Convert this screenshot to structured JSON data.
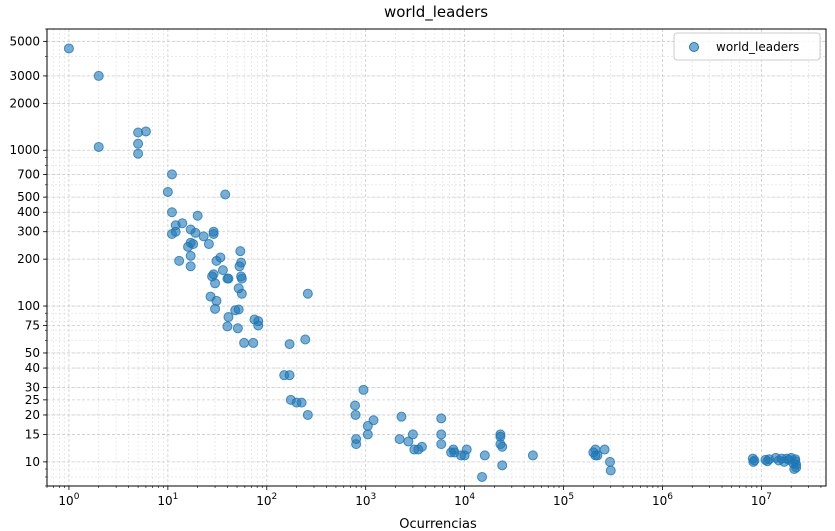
{
  "chart_data": {
    "type": "scatter",
    "title": "world_leaders",
    "xlabel": "Ocurrencias",
    "ylabel": "",
    "xscale": "log",
    "yscale": "log",
    "xlim": [
      0.6,
      45000000
    ],
    "ylim": [
      7,
      6000
    ],
    "grid": true,
    "legend_position": "top-right",
    "x_ticks": [
      {
        "value": 1,
        "base": "10",
        "exp": "0"
      },
      {
        "value": 10,
        "base": "10",
        "exp": "1"
      },
      {
        "value": 100,
        "base": "10",
        "exp": "2"
      },
      {
        "value": 1000,
        "base": "10",
        "exp": "3"
      },
      {
        "value": 10000,
        "base": "10",
        "exp": "4"
      },
      {
        "value": 100000,
        "base": "10",
        "exp": "5"
      },
      {
        "value": 1000000,
        "base": "10",
        "exp": "6"
      },
      {
        "value": 10000000,
        "base": "10",
        "exp": "7"
      }
    ],
    "y_ticks": [
      {
        "value": 10,
        "label": "10"
      },
      {
        "value": 15,
        "label": "15"
      },
      {
        "value": 20,
        "label": "20"
      },
      {
        "value": 25,
        "label": "25"
      },
      {
        "value": 30,
        "label": "30"
      },
      {
        "value": 40,
        "label": "40"
      },
      {
        "value": 50,
        "label": "50"
      },
      {
        "value": 75,
        "label": "75"
      },
      {
        "value": 100,
        "label": "100"
      },
      {
        "value": 200,
        "label": "200"
      },
      {
        "value": 300,
        "label": "300"
      },
      {
        "value": 400,
        "label": "400"
      },
      {
        "value": 500,
        "label": "500"
      },
      {
        "value": 700,
        "label": "700"
      },
      {
        "value": 1000,
        "label": "1000"
      },
      {
        "value": 2000,
        "label": "2000"
      },
      {
        "value": 3000,
        "label": "3000"
      },
      {
        "value": 5000,
        "label": "5000"
      }
    ],
    "series": [
      {
        "name": "world_leaders",
        "color": "#1f77b4",
        "points": [
          [
            1,
            4500
          ],
          [
            2,
            3000
          ],
          [
            2,
            1050
          ],
          [
            5,
            1300
          ],
          [
            6,
            1320
          ],
          [
            5,
            1100
          ],
          [
            5,
            950
          ],
          [
            11,
            700
          ],
          [
            10,
            540
          ],
          [
            11,
            400
          ],
          [
            12,
            330
          ],
          [
            14,
            340
          ],
          [
            12,
            300
          ],
          [
            11,
            290
          ],
          [
            20,
            380
          ],
          [
            17,
            310
          ],
          [
            19,
            295
          ],
          [
            18,
            250
          ],
          [
            17,
            255
          ],
          [
            16,
            240
          ],
          [
            17,
            210
          ],
          [
            13,
            195
          ],
          [
            17,
            180
          ],
          [
            23,
            280
          ],
          [
            29,
            300
          ],
          [
            29,
            290
          ],
          [
            26,
            250
          ],
          [
            38,
            520
          ],
          [
            54,
            225
          ],
          [
            34,
            205
          ],
          [
            31,
            195
          ],
          [
            55,
            190
          ],
          [
            53,
            180
          ],
          [
            36,
            170
          ],
          [
            29,
            160
          ],
          [
            28,
            155
          ],
          [
            40,
            150
          ],
          [
            41,
            150
          ],
          [
            55,
            155
          ],
          [
            56,
            150
          ],
          [
            30,
            140
          ],
          [
            52,
            130
          ],
          [
            56,
            120
          ],
          [
            27,
            115
          ],
          [
            31,
            108
          ],
          [
            30,
            96
          ],
          [
            48,
            94
          ],
          [
            52,
            95
          ],
          [
            41,
            85
          ],
          [
            75,
            82
          ],
          [
            82,
            80
          ],
          [
            82,
            75
          ],
          [
            40,
            74
          ],
          [
            51,
            72
          ],
          [
            59,
            58
          ],
          [
            73,
            58
          ],
          [
            260,
            120
          ],
          [
            245,
            61
          ],
          [
            170,
            57
          ],
          [
            150,
            36
          ],
          [
            170,
            36
          ],
          [
            175,
            25
          ],
          [
            200,
            24
          ],
          [
            225,
            24
          ],
          [
            260,
            20
          ],
          [
            950,
            29
          ],
          [
            780,
            23
          ],
          [
            790,
            20
          ],
          [
            1200,
            18.5
          ],
          [
            1050,
            17
          ],
          [
            1050,
            15
          ],
          [
            800,
            14
          ],
          [
            800,
            13
          ],
          [
            2300,
            19.5
          ],
          [
            2200,
            14
          ],
          [
            2700,
            13.5
          ],
          [
            3000,
            15
          ],
          [
            3700,
            12.5
          ],
          [
            3100,
            12
          ],
          [
            3400,
            12
          ],
          [
            5800,
            19
          ],
          [
            5800,
            15
          ],
          [
            5800,
            13
          ],
          [
            7700,
            12
          ],
          [
            7300,
            11.5
          ],
          [
            7900,
            11.5
          ],
          [
            9200,
            11
          ],
          [
            10000,
            11
          ],
          [
            10500,
            12
          ],
          [
            16000,
            11
          ],
          [
            15000,
            8
          ],
          [
            23000,
            15
          ],
          [
            23000,
            14.5
          ],
          [
            23000,
            13
          ],
          [
            24000,
            12.5
          ],
          [
            24000,
            9.5
          ],
          [
            49000,
            11
          ],
          [
            200000,
            11.5
          ],
          [
            210000,
            12
          ],
          [
            210000,
            11
          ],
          [
            220000,
            11
          ],
          [
            260000,
            12
          ],
          [
            295000,
            10
          ],
          [
            300000,
            8.8
          ],
          [
            8200000,
            10.5
          ],
          [
            8500000,
            10.2
          ],
          [
            8300000,
            10
          ],
          [
            11000000,
            10.3
          ],
          [
            11500000,
            10.1
          ],
          [
            12000000,
            10.4
          ],
          [
            14000000,
            10.6
          ],
          [
            15000000,
            10.2
          ],
          [
            16000000,
            10.5
          ],
          [
            17000000,
            10
          ],
          [
            18000000,
            10.5
          ],
          [
            19000000,
            10.3
          ],
          [
            20000000,
            10.6
          ],
          [
            21000000,
            9.8
          ],
          [
            22000000,
            10.4
          ],
          [
            22000000,
            10.1
          ],
          [
            22500000,
            9.6
          ],
          [
            22500000,
            9.2
          ],
          [
            21500000,
            9.0
          ]
        ]
      }
    ]
  }
}
